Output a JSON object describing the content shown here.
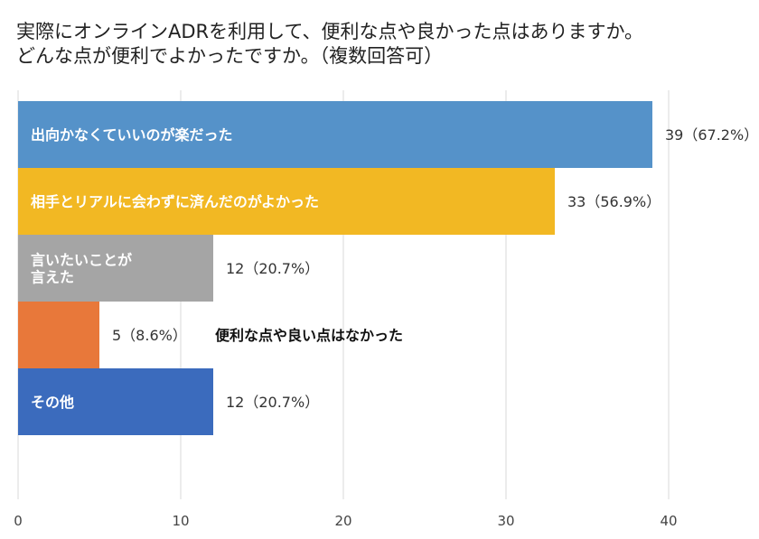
{
  "title_lines": [
    "実際にオンラインADRを利用して、便利な点や良かった点はありますか。",
    "どんな点が便利でよかったですか。（複数回答可）"
  ],
  "colors": {
    "blue": "#5592c9",
    "gold": "#f2b823",
    "gray": "#a5a5a5",
    "orange": "#e8783a",
    "navy": "#3b6bbd",
    "grid": "#d9d9d9"
  },
  "chart_data": {
    "type": "bar",
    "orientation": "horizontal",
    "categories": [
      "出向かなくていいのが楽だった",
      "相手とリアルに会わずに済んだのがよかった",
      "言いたいことが言えた",
      "便利な点や良い点はなかった",
      "その他"
    ],
    "values": [
      39,
      33,
      12,
      5,
      12
    ],
    "percents": [
      "67.2%",
      "56.9%",
      "20.7%",
      "8.6%",
      "20.7%"
    ],
    "value_labels": [
      "39（67.2%）",
      "33（56.9%）",
      "12（20.7%）",
      "5（8.6%）",
      "12（20.7%）"
    ],
    "category_label_lines": [
      [
        "出向かなくていいのが楽だった"
      ],
      [
        "相手とリアルに会わずに済んだのがよかった"
      ],
      [
        "言いたいことが",
        "言えた"
      ],
      [
        "便利な点や良い点はなかった"
      ],
      [
        "その他"
      ]
    ],
    "bar_colors": [
      "#5592c9",
      "#f2b823",
      "#a5a5a5",
      "#e8783a",
      "#3b6bbd"
    ],
    "xlim": [
      0,
      40
    ],
    "xticks": [
      0,
      10,
      20,
      30,
      40
    ],
    "xtick_labels": [
      "0",
      "10",
      "20",
      "30",
      "40"
    ],
    "grid": true,
    "xlabel": "",
    "ylabel": ""
  }
}
